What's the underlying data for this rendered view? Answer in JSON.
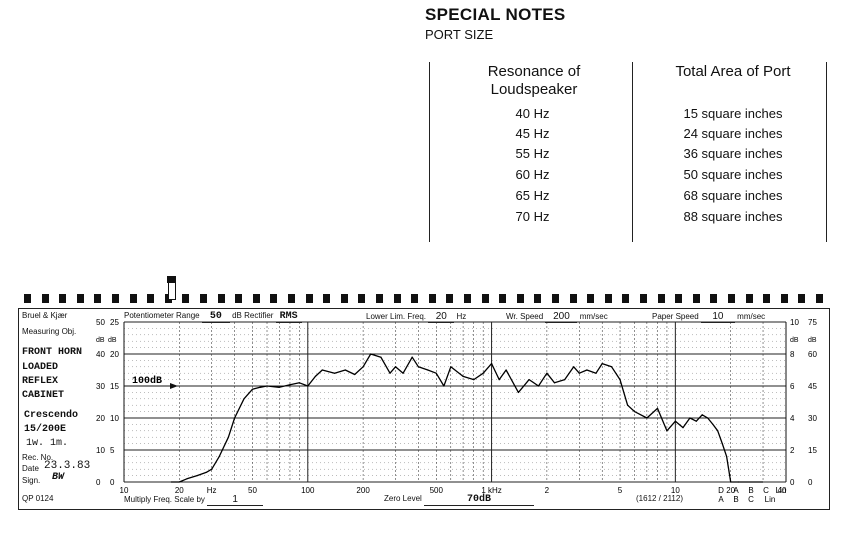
{
  "notes": {
    "title": "SPECIAL NOTES",
    "subtitle": "PORT SIZE",
    "col1_header_line1": "Resonance of",
    "col1_header_line2": "Loudspeaker",
    "col2_header": "Total Area of Port",
    "rows": [
      {
        "freq": "40 Hz",
        "area": "15 square inches"
      },
      {
        "freq": "45 Hz",
        "area": "24 square inches"
      },
      {
        "freq": "55 Hz",
        "area": "36 square inches"
      },
      {
        "freq": "60 Hz",
        "area": "50 square inches"
      },
      {
        "freq": "65 Hz",
        "area": "68 square inches"
      },
      {
        "freq": "70 Hz",
        "area": "88 square inches"
      }
    ]
  },
  "recorder": {
    "brand": "Bruel & Kjær",
    "pot_label": "Potentiometer Range",
    "pot_value": "50",
    "db_label": "dB",
    "rect_label": "Rectifier",
    "rect_value": "RMS",
    "lowlim_label": "Lower Lim. Freq.",
    "lowlim_value": "20",
    "hz_label": "Hz",
    "wr_label": "Wr. Speed",
    "wr_value": "200",
    "mmsec_label": "mm/sec",
    "paper_label": "Paper Speed",
    "paper_value": "10",
    "mmsec2_label": "mm/sec",
    "measuring_label": "Measuring Obj.",
    "obj_lines": [
      "FRONT HORN",
      "LOADED",
      "REFLEX",
      "CABINET"
    ],
    "note_lines": [
      "Crescendo",
      "15/200E",
      "1w. 1m."
    ],
    "rec_label": "Rec. No.",
    "date_label": "Date",
    "date_value": "23.3.83",
    "sign_label": "Sign.",
    "sign_value": "BW",
    "form_no": "QP 0124",
    "mult_label": "Multiply Freq. Scale by",
    "mult_value": "1",
    "zero_label": "Zero Level",
    "zero_value": "70dB",
    "code": "(1612 / 2112)",
    "marker_100db": "100dB",
    "left_db_top": "dB",
    "left_db_sub": "dB",
    "right_db_top": "dB",
    "right_db_sub": "dB",
    "filters_top": [
      "40",
      "D",
      "A",
      "B",
      "C",
      "Lin"
    ],
    "filters_bottom": [
      "A",
      "B",
      "C",
      "Lin"
    ],
    "hz_tick": "Hz",
    "khz_tick": "1 kHz"
  },
  "chart_data": {
    "type": "line",
    "xlabel": "Hz",
    "ylabel": "dB",
    "x_scale": "log",
    "xlim": [
      10,
      40000
    ],
    "ylim": [
      0,
      25
    ],
    "x_ticks": [
      "10",
      "20",
      "50",
      "100",
      "200",
      "500",
      "1 kHz",
      "2",
      "5",
      "10",
      "20"
    ],
    "y_ticks_left_outer": [
      "50",
      "40",
      "30",
      "20",
      "10",
      "0"
    ],
    "y_ticks_left_inner": [
      "25",
      "20",
      "15",
      "10",
      "5",
      "0"
    ],
    "y_ticks_right_inner": [
      "10",
      "8",
      "6",
      "4",
      "2",
      "0"
    ],
    "y_ticks_right_outer": [
      "75",
      "60",
      "45",
      "30",
      "15",
      "0"
    ],
    "series": [
      {
        "x": [
          20,
          22,
          25,
          28,
          30,
          33,
          37,
          40,
          45,
          50,
          55,
          60,
          70,
          80,
          90,
          100,
          110,
          120,
          140,
          160,
          180,
          200,
          220,
          250,
          280,
          300,
          330,
          370,
          400,
          450,
          500,
          550,
          600,
          700,
          800,
          900,
          1000,
          1100,
          1200,
          1400,
          1600,
          1800,
          2000,
          2200,
          2500,
          2800,
          3000,
          3300,
          3700,
          4000,
          4500,
          5000,
          5500,
          6000,
          7000,
          8000,
          9000,
          10000,
          11000,
          12000,
          13000,
          14000,
          15000,
          16000,
          17000,
          18000,
          19000,
          20000,
          22000
        ],
        "y": [
          0,
          0.5,
          1,
          1.5,
          2,
          4,
          7,
          10,
          13,
          14.5,
          14.8,
          15,
          14.8,
          15.2,
          15.5,
          15,
          16.5,
          17.5,
          17,
          17.5,
          16.8,
          18,
          20,
          19.5,
          17,
          18,
          17,
          19.5,
          18,
          17.5,
          17,
          15,
          18,
          16.5,
          16,
          17,
          18.5,
          16,
          17.5,
          14,
          16,
          15,
          17,
          15.5,
          16,
          18,
          17,
          17.5,
          17,
          18.5,
          18,
          16,
          12,
          11,
          10,
          11.5,
          8,
          9.5,
          8.5,
          10,
          9.5,
          10.5,
          10,
          9,
          8,
          6,
          4,
          0,
          0
        ]
      }
    ],
    "grid": true
  }
}
